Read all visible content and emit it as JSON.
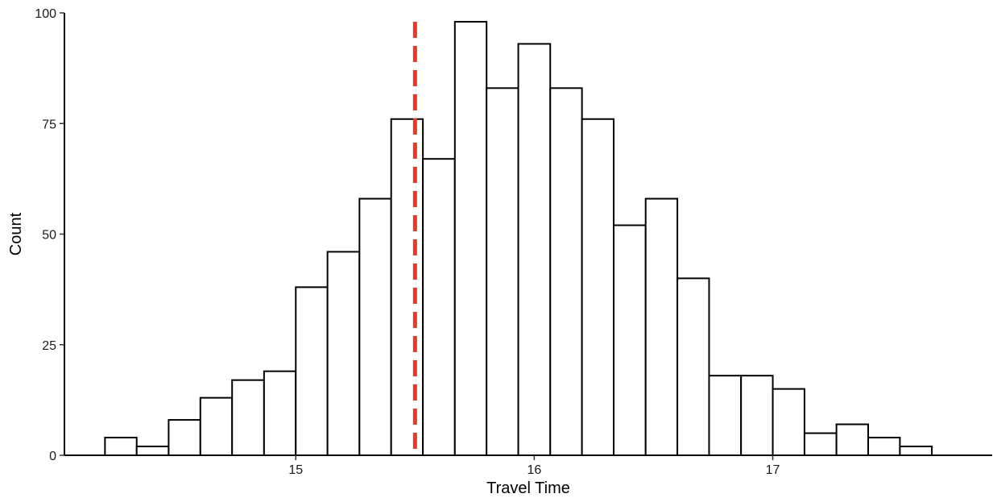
{
  "chart_data": {
    "type": "bar",
    "title": "",
    "xlabel": "Travel Time",
    "ylabel": "Count",
    "xlim": [
      14.03,
      17.92
    ],
    "ylim": [
      0,
      100
    ],
    "xticks": [
      15,
      16,
      17
    ],
    "yticks": [
      0,
      25,
      50,
      75,
      100
    ],
    "bin_width": 0.1333,
    "bins": [
      {
        "x0": 14.2,
        "x1": 14.333,
        "count": 4
      },
      {
        "x0": 14.333,
        "x1": 14.467,
        "count": 2
      },
      {
        "x0": 14.467,
        "x1": 14.6,
        "count": 8
      },
      {
        "x0": 14.6,
        "x1": 14.733,
        "count": 13
      },
      {
        "x0": 14.733,
        "x1": 14.867,
        "count": 17
      },
      {
        "x0": 14.867,
        "x1": 15.0,
        "count": 19
      },
      {
        "x0": 15.0,
        "x1": 15.133,
        "count": 38
      },
      {
        "x0": 15.133,
        "x1": 15.267,
        "count": 46
      },
      {
        "x0": 15.267,
        "x1": 15.4,
        "count": 58
      },
      {
        "x0": 15.4,
        "x1": 15.533,
        "count": 76
      },
      {
        "x0": 15.533,
        "x1": 15.667,
        "count": 67
      },
      {
        "x0": 15.667,
        "x1": 15.8,
        "count": 98
      },
      {
        "x0": 15.8,
        "x1": 15.933,
        "count": 83
      },
      {
        "x0": 15.933,
        "x1": 16.067,
        "count": 93
      },
      {
        "x0": 16.067,
        "x1": 16.2,
        "count": 83
      },
      {
        "x0": 16.2,
        "x1": 16.333,
        "count": 76
      },
      {
        "x0": 16.333,
        "x1": 16.467,
        "count": 52
      },
      {
        "x0": 16.467,
        "x1": 16.6,
        "count": 58
      },
      {
        "x0": 16.6,
        "x1": 16.733,
        "count": 40
      },
      {
        "x0": 16.733,
        "x1": 16.867,
        "count": 18
      },
      {
        "x0": 16.867,
        "x1": 17.0,
        "count": 18
      },
      {
        "x0": 17.0,
        "x1": 17.133,
        "count": 15
      },
      {
        "x0": 17.133,
        "x1": 17.267,
        "count": 5
      },
      {
        "x0": 17.267,
        "x1": 17.4,
        "count": 7
      },
      {
        "x0": 17.4,
        "x1": 17.533,
        "count": 4
      },
      {
        "x0": 17.533,
        "x1": 17.667,
        "count": 2
      }
    ],
    "reference_line": {
      "x": 15.5,
      "style": "dashed",
      "y_top": 98
    },
    "colors": {
      "bar_fill": "#ffffff",
      "bar_stroke": "#000000",
      "reference_line": "#e8382a",
      "axis": "#000000"
    },
    "grid": false,
    "legend": "none"
  }
}
